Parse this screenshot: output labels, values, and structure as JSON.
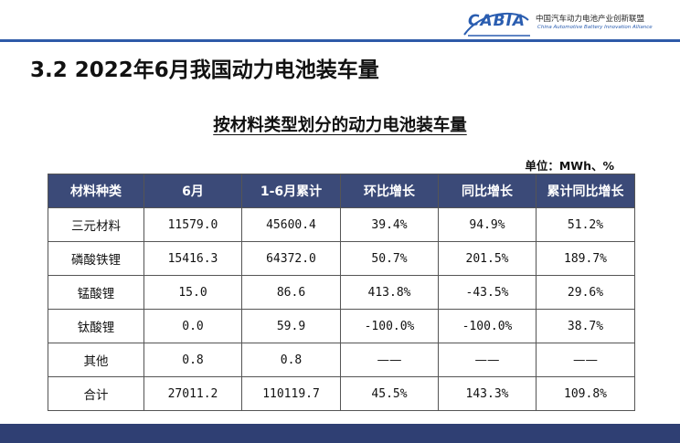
{
  "header": {
    "logo_text": "CABIA",
    "org_cn": "中国汽车动力电池产业创新联盟",
    "org_en": "China Automotive Battery Innovation Alliance"
  },
  "slide_title": "3.2 2022年6月我国动力电池装车量",
  "table_title": "按材料类型划分的动力电池装车量",
  "unit": "单位：MWh、%",
  "table": {
    "headers": [
      "材料种类",
      "6月",
      "1-6月累计",
      "环比增长",
      "同比增长",
      "累计同比增长"
    ],
    "rows": [
      [
        "三元材料",
        "11579.0",
        "45600.4",
        "39.4%",
        "94.9%",
        "51.2%"
      ],
      [
        "磷酸铁锂",
        "15416.3",
        "64372.0",
        "50.7%",
        "201.5%",
        "189.7%"
      ],
      [
        "锰酸锂",
        "15.0",
        "86.6",
        "413.8%",
        "-43.5%",
        "29.6%"
      ],
      [
        "钛酸锂",
        "0.0",
        "59.9",
        "-100.0%",
        "-100.0%",
        "38.7%"
      ],
      [
        "其他",
        "0.8",
        "0.8",
        "——",
        "——",
        "——"
      ],
      [
        "合计",
        "27011.2",
        "110119.7",
        "45.5%",
        "143.3%",
        "109.8%"
      ]
    ]
  },
  "colors": {
    "header_bg": "#3b4a78",
    "accent_blue": "#2e5aa8",
    "bottom_bar": "#2f3f73"
  }
}
